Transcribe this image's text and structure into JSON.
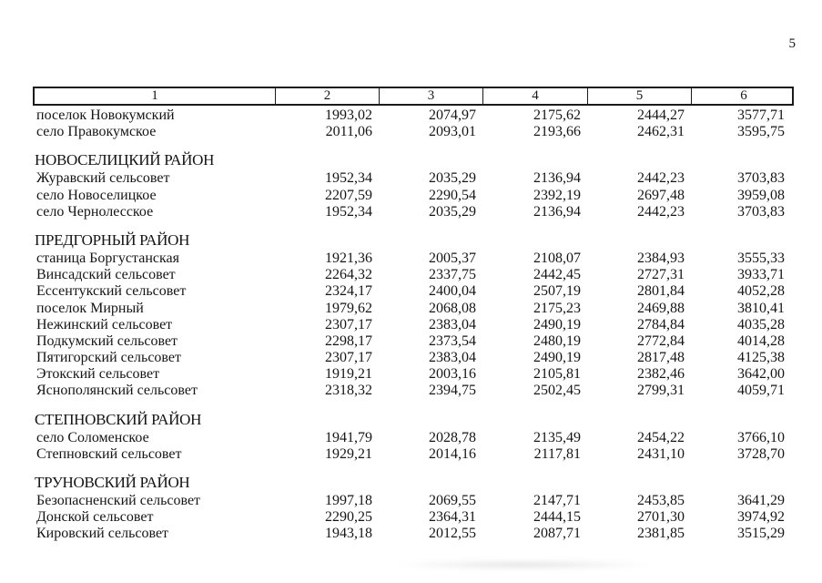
{
  "page": {
    "number": "5"
  },
  "colors": {
    "ink": "#151515",
    "border": "#1a1a1a",
    "background": "#ffffff"
  },
  "table": {
    "columns": [
      "1",
      "2",
      "3",
      "4",
      "5",
      "6"
    ],
    "sections": [
      {
        "title": "",
        "rows": [
          {
            "name": "поселок Новокумский",
            "values": [
              "1993,02",
              "2074,97",
              "2175,62",
              "2444,27",
              "3577,71"
            ]
          },
          {
            "name": "село Правокумское",
            "values": [
              "2011,06",
              "2093,01",
              "2193,66",
              "2462,31",
              "3595,75"
            ]
          }
        ]
      },
      {
        "title": "НОВОСЕЛИЦКИЙ РАЙОН",
        "rows": [
          {
            "name": "Журавский сельсовет",
            "values": [
              "1952,34",
              "2035,29",
              "2136,94",
              "2442,23",
              "3703,83"
            ]
          },
          {
            "name": "село Новоселицкое",
            "values": [
              "2207,59",
              "2290,54",
              "2392,19",
              "2697,48",
              "3959,08"
            ]
          },
          {
            "name": "село Чернолесское",
            "values": [
              "1952,34",
              "2035,29",
              "2136,94",
              "2442,23",
              "3703,83"
            ]
          }
        ]
      },
      {
        "title": "ПРЕДГОРНЫЙ РАЙОН",
        "rows": [
          {
            "name": "станица Боргустанская",
            "values": [
              "1921,36",
              "2005,37",
              "2108,07",
              "2384,93",
              "3555,33"
            ]
          },
          {
            "name": "Винсадский сельсовет",
            "values": [
              "2264,32",
              "2337,75",
              "2442,45",
              "2727,31",
              "3933,71"
            ]
          },
          {
            "name": "Ессентукский сельсовет",
            "values": [
              "2324,17",
              "2400,04",
              "2507,19",
              "2801,84",
              "4052,28"
            ]
          },
          {
            "name": "поселок Мирный",
            "values": [
              "1979,62",
              "2068,08",
              "2175,23",
              "2469,88",
              "3810,41"
            ]
          },
          {
            "name": "Нежинский сельсовет",
            "values": [
              "2307,17",
              "2383,04",
              "2490,19",
              "2784,84",
              "4035,28"
            ]
          },
          {
            "name": "Подкумский сельсовет",
            "values": [
              "2298,17",
              "2373,54",
              "2480,19",
              "2772,84",
              "4014,28"
            ]
          },
          {
            "name": "Пятигорский сельсовет",
            "values": [
              "2307,17",
              "2383,04",
              "2490,19",
              "2817,48",
              "4125,38"
            ]
          },
          {
            "name": "Этокский сельсовет",
            "values": [
              "1919,21",
              "2003,16",
              "2105,81",
              "2382,46",
              "3642,00"
            ]
          },
          {
            "name": "Яснополянский сельсовет",
            "values": [
              "2318,32",
              "2394,75",
              "2502,45",
              "2799,31",
              "4059,71"
            ]
          }
        ]
      },
      {
        "title": "СТЕПНОВСКИЙ РАЙОН",
        "rows": [
          {
            "name": "село Соломенское",
            "values": [
              "1941,79",
              "2028,78",
              "2135,49",
              "2454,22",
              "3766,10"
            ]
          },
          {
            "name": "Степновский сельсовет",
            "values": [
              "1929,21",
              "2014,16",
              "2117,81",
              "2431,10",
              "3728,70"
            ]
          }
        ]
      },
      {
        "title": "ТРУНОВСКИЙ РАЙОН",
        "rows": [
          {
            "name": "Безопасненский сельсовет",
            "values": [
              "1997,18",
              "2069,55",
              "2147,71",
              "2453,85",
              "3641,29"
            ]
          },
          {
            "name": "Донской сельсовет",
            "values": [
              "2290,25",
              "2364,31",
              "2444,15",
              "2701,30",
              "3974,92"
            ]
          },
          {
            "name": "Кировский сельсовет",
            "values": [
              "1943,18",
              "2012,55",
              "2087,71",
              "2381,85",
              "3515,29"
            ]
          }
        ]
      }
    ]
  }
}
